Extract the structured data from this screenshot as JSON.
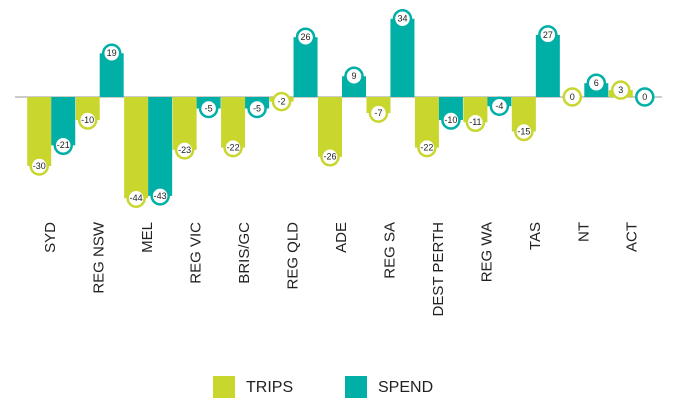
{
  "chart_data": {
    "type": "bar",
    "categories": [
      "SYD",
      "REG NSW",
      "MEL",
      "REG VIC",
      "BRIS/GC",
      "REG QLD",
      "ADE",
      "REG SA",
      "DEST PERTH",
      "REG WA",
      "TAS",
      "NT",
      "ACT"
    ],
    "series": [
      {
        "name": "TRIPS",
        "color": "#c8d62e",
        "values": [
          -30,
          -10,
          -44,
          -23,
          -22,
          -2,
          -26,
          -7,
          -22,
          -11,
          -15,
          0,
          3
        ]
      },
      {
        "name": "SPEND",
        "color": "#00afa5",
        "values": [
          -21,
          19,
          -43,
          -5,
          -5,
          26,
          9,
          34,
          -10,
          -4,
          27,
          6,
          0
        ]
      }
    ]
  }
}
